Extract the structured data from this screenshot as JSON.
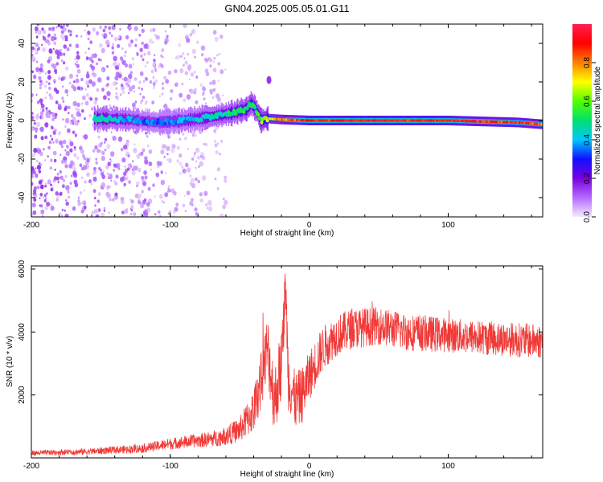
{
  "page": {
    "title": "GN04.2025.005.05.01.G11"
  },
  "chart_data": [
    {
      "type": "heatmap",
      "title": "GN04.2025.005.05.01.G11",
      "xlabel": "Height of straight line (km)",
      "ylabel": "Frequency (Hz)",
      "xlim": [
        -200,
        168
      ],
      "ylim": [
        -50,
        50
      ],
      "xticks": [
        -200,
        -100,
        0,
        100
      ],
      "yticks": [
        -40,
        -20,
        0,
        20,
        40
      ],
      "xtick_labels": [
        "-200",
        "-100",
        "0",
        "100"
      ],
      "ytick_labels": [
        "-40",
        "-20",
        "0",
        "20",
        "40"
      ],
      "grid": false,
      "colorbar": {
        "label": "Normalized spectral amplitude",
        "range": [
          0.0,
          1.0
        ],
        "ticks": [
          0.0,
          0.2,
          0.4,
          0.6,
          0.8
        ],
        "tick_labels": [
          "0.0",
          "0.2",
          "0.4",
          "0.6",
          "0.8"
        ],
        "colors": [
          "#f4eafc",
          "#b36bff",
          "#7a00e0",
          "#1010ff",
          "#00c8ff",
          "#00e070",
          "#50ff00",
          "#ffff00",
          "#ff8000",
          "#ff0000",
          "#ff2050"
        ]
      },
      "ridge": {
        "description_points_x": [
          -150,
          -130,
          -110,
          -90,
          -70,
          -55,
          -45,
          -42,
          -38,
          -35,
          -30,
          -20,
          0,
          50,
          100,
          150,
          168
        ],
        "frequency_y": [
          1,
          0.5,
          -1,
          0,
          2,
          4,
          6,
          9,
          5,
          0,
          1,
          0.5,
          0,
          0,
          0,
          -1,
          -2
        ],
        "peak_amplitude": [
          0.45,
          0.4,
          0.35,
          0.4,
          0.45,
          0.5,
          0.55,
          0.5,
          0.55,
          0.6,
          0.7,
          0.8,
          0.95,
          0.97,
          0.95,
          0.9,
          0.85
        ]
      },
      "noise_region_x": [
        -200,
        -60
      ],
      "outlier_blob": {
        "x": -29,
        "y": 21
      }
    },
    {
      "type": "line",
      "title": "",
      "xlabel": "Height of straight line (km)",
      "ylabel": "SNR (10 * v/v)",
      "xlim": [
        -200,
        168
      ],
      "ylim": [
        0,
        6100
      ],
      "xticks": [
        -200,
        -100,
        0,
        100
      ],
      "yticks": [
        2000,
        4000,
        6000
      ],
      "xtick_labels": [
        "-200",
        "-100",
        "0",
        "100"
      ],
      "ytick_labels": [
        "2000",
        "4000",
        "6000"
      ],
      "grid": false,
      "series": [
        {
          "color": "#f03a37",
          "x": [
            -200,
            -180,
            -160,
            -140,
            -120,
            -100,
            -90,
            -80,
            -70,
            -60,
            -50,
            -40,
            -35,
            -30,
            -25,
            -20,
            -17,
            -15,
            -10,
            -5,
            0,
            10,
            20,
            30,
            50,
            70,
            100,
            130,
            150,
            168
          ],
          "y": [
            150,
            180,
            200,
            250,
            300,
            450,
            500,
            550,
            600,
            700,
            900,
            1500,
            2400,
            3500,
            1800,
            3000,
            5500,
            2500,
            1800,
            2000,
            2600,
            3500,
            3900,
            4100,
            4200,
            4000,
            3900,
            3800,
            3750,
            3700
          ],
          "noise_amplitude": [
            80,
            90,
            100,
            120,
            140,
            180,
            200,
            220,
            250,
            300,
            400,
            700,
            900,
            1100,
            1100,
            1200,
            800,
            1000,
            900,
            900,
            800,
            700,
            650,
            650,
            600,
            600,
            550,
            550,
            550,
            550
          ]
        }
      ]
    }
  ]
}
